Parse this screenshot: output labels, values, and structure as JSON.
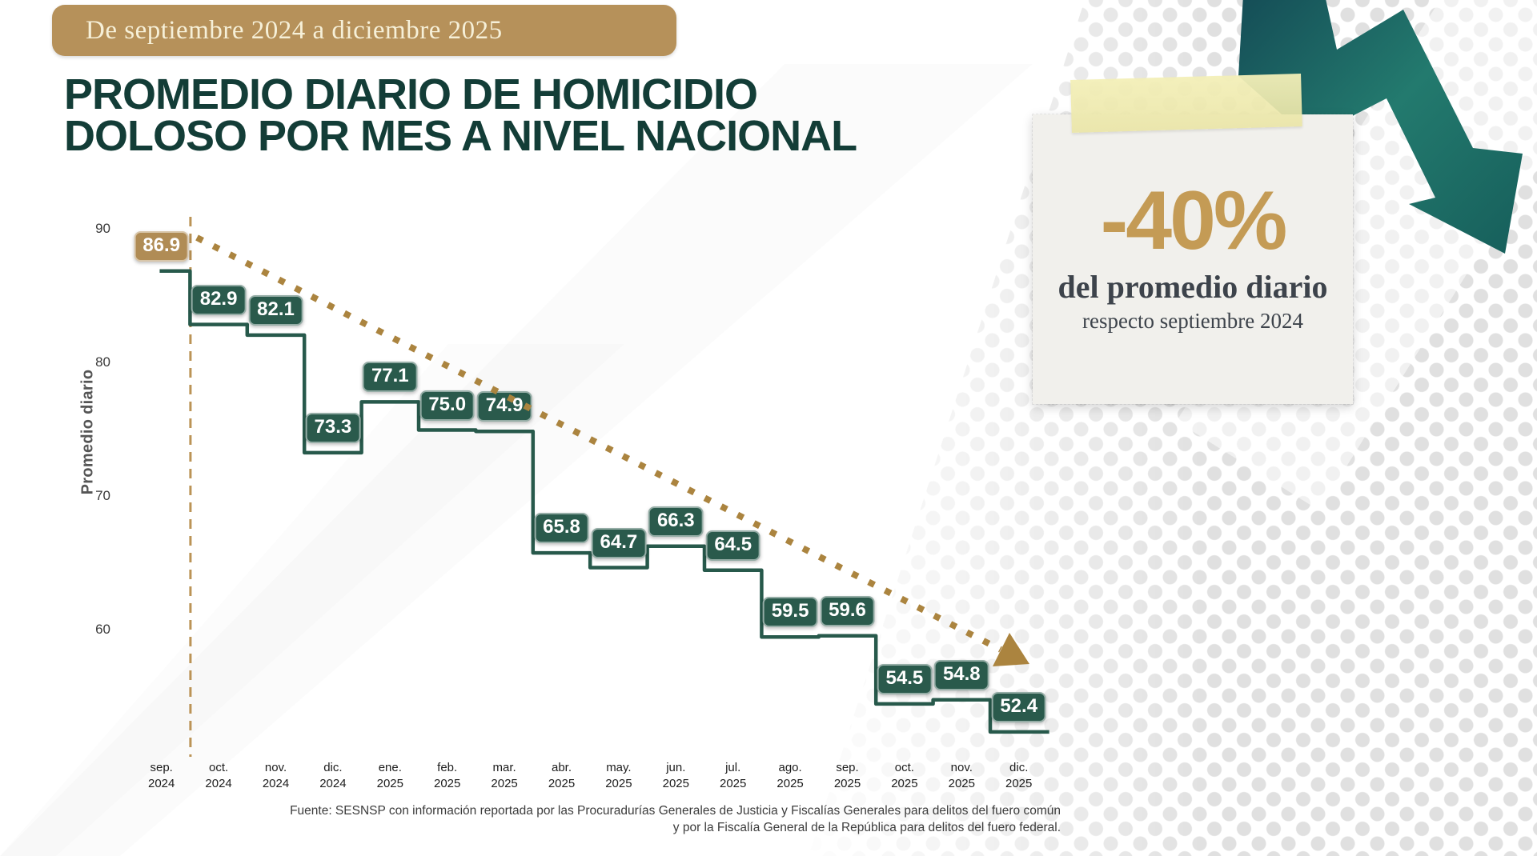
{
  "badge": {
    "label": "De septiembre 2024 a diciembre 2025"
  },
  "title": {
    "line1": "PROMEDIO DIARIO DE HOMICIDIO",
    "line2": "DOLOSO POR MES A NIVEL NACIONAL"
  },
  "chart_data": {
    "type": "line",
    "line_style": "step",
    "title": "Promedio diario de homicidio doloso por mes a nivel nacional",
    "ylabel": "Promedio diario",
    "xlabel": "",
    "y_ticks": [
      90,
      80,
      70,
      60
    ],
    "ylim": [
      50,
      92
    ],
    "grid": false,
    "legend_position": "none",
    "categories": [
      {
        "m": "sep.",
        "y": "2024"
      },
      {
        "m": "oct.",
        "y": "2024"
      },
      {
        "m": "nov.",
        "y": "2024"
      },
      {
        "m": "dic.",
        "y": "2024"
      },
      {
        "m": "ene.",
        "y": "2025"
      },
      {
        "m": "feb.",
        "y": "2025"
      },
      {
        "m": "mar.",
        "y": "2025"
      },
      {
        "m": "abr.",
        "y": "2025"
      },
      {
        "m": "may.",
        "y": "2025"
      },
      {
        "m": "jun.",
        "y": "2025"
      },
      {
        "m": "jul.",
        "y": "2025"
      },
      {
        "m": "ago.",
        "y": "2025"
      },
      {
        "m": "sep.",
        "y": "2025"
      },
      {
        "m": "oct.",
        "y": "2025"
      },
      {
        "m": "nov.",
        "y": "2025"
      },
      {
        "m": "dic.",
        "y": "2025"
      }
    ],
    "values": [
      86.9,
      82.9,
      82.1,
      73.3,
      77.1,
      75.0,
      74.9,
      65.8,
      64.7,
      66.3,
      64.5,
      59.5,
      59.6,
      54.5,
      54.8,
      52.4
    ],
    "value_labels": [
      "86.9",
      "82.9",
      "82.1",
      "73.3",
      "77.1",
      "75.0",
      "74.9",
      "65.8",
      "64.7",
      "66.3",
      "64.5",
      "59.5",
      "59.6",
      "54.5",
      "54.8",
      "52.4"
    ],
    "highlight_index": 0,
    "reference_line": {
      "type": "vertical-dashed",
      "at": "sep. 2024",
      "color": "#bb9356"
    },
    "trend_arrow": {
      "style": "dotted",
      "direction": "down-right",
      "color": "#ab843f"
    },
    "colors": {
      "step_line": "#27594b",
      "value_box": "#2a5a4c",
      "value_box_highlight": "#b08c55",
      "dotted_trend": "#ab843f",
      "title_text": "#133d37",
      "decor_arrow": "#1c6b63"
    }
  },
  "note_card": {
    "pct": "-40%",
    "line1": "del promedio diario",
    "line2": "respecto septiembre 2024"
  },
  "footer": {
    "line1": "Fuente: SESNSP con información reportada por las Procuradurías Generales de Justicia y Fiscalías Generales para delitos del fuero común",
    "line2": "y por la Fiscalía General de la República para delitos del fuero federal."
  }
}
